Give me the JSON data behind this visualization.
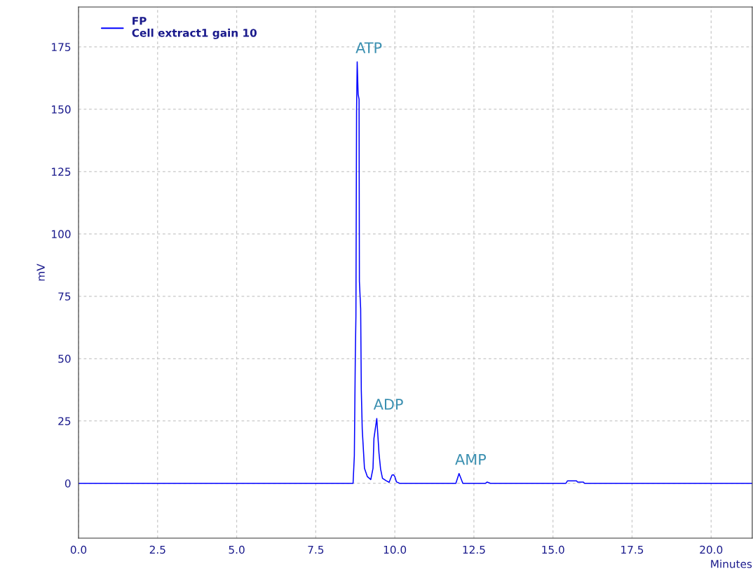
{
  "chart_data": {
    "type": "line",
    "xlabel": "Minutes",
    "ylabel": "mV",
    "legend": "top left",
    "grid": true,
    "marker": "none",
    "line_style": "solid",
    "xlim": [
      0,
      21.3
    ],
    "xticks": [
      {
        "value": 0,
        "label": "0.0"
      },
      2.5,
      {
        "value": 5,
        "label": "5.0"
      },
      7.5,
      {
        "value": 10,
        "label": "10.0"
      },
      12.5,
      {
        "value": 15,
        "label": "15.0"
      },
      17.5,
      {
        "value": 20,
        "label": "20.0"
      }
    ],
    "ylim": [
      -22,
      191
    ],
    "yticks": [
      0,
      25,
      50,
      75,
      100,
      125,
      150,
      175
    ],
    "series": [
      {
        "name": "FP\nCell extract1 gain 10",
        "color": "#0000ff",
        "x": [
          0,
          8.68,
          8.72,
          8.75,
          8.77,
          8.79,
          8.81,
          8.84,
          8.87,
          8.88,
          8.92,
          8.94,
          8.97,
          9.04,
          9.13,
          9.24,
          9.31,
          9.34,
          9.38,
          9.43,
          9.46,
          9.5,
          9.55,
          9.61,
          9.73,
          9.82,
          9.91,
          9.96,
          10.0,
          10.05,
          10.15,
          11.93,
          12.03,
          12.15,
          12.87,
          12.92,
          13.02,
          15.41,
          15.46,
          15.74,
          15.78,
          15.96,
          16.0,
          21.3
        ],
        "values": [
          0,
          0,
          11,
          50,
          67,
          149,
          169,
          156,
          154,
          81,
          70,
          37.5,
          21.6,
          6,
          2.7,
          1.5,
          6,
          18,
          21.6,
          26,
          20,
          12,
          5.7,
          2,
          1,
          0.4,
          3.3,
          3.4,
          2.7,
          0.6,
          0,
          0,
          3.9,
          0,
          0,
          0.5,
          0,
          0,
          1,
          1,
          0.5,
          0.5,
          0,
          0
        ]
      }
    ],
    "annotations": [
      {
        "text": "ATP",
        "x": 8.81,
        "y": 169
      },
      {
        "text": "ADP",
        "x": 9.43,
        "y": 26
      },
      {
        "text": "AMP",
        "x": 12.03,
        "y": 3.9
      }
    ]
  }
}
